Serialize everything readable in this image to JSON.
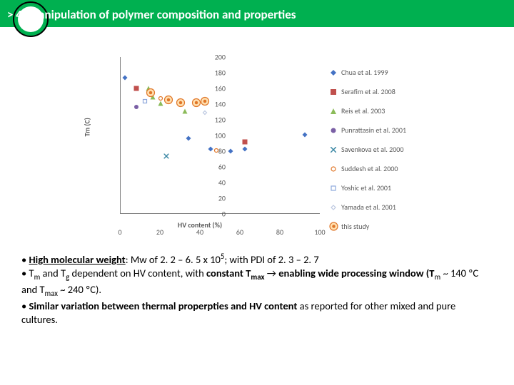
{
  "header": {
    "title": "> 4. Manipulation of polymer composition and properties"
  },
  "chart": {
    "type": "scatter",
    "ylabel": "Tm (C)",
    "xlabel": "HV content (%)",
    "ylim": [
      0,
      200
    ],
    "ytick_step": 20,
    "xlim": [
      0,
      100
    ],
    "xtick_step": 20,
    "axis_color": "#808080",
    "background_color": "#ffffff",
    "label_fontsize": 10,
    "tick_fontsize": 10,
    "legend": [
      {
        "label": "Chua et al. 1999",
        "marker": "diamond-fill",
        "color": "#4472c4"
      },
      {
        "label": "Serafim et al. 2008",
        "marker": "square-fill",
        "color": "#c0504d"
      },
      {
        "label": "Reis et al. 2003",
        "marker": "triangle-fill",
        "color": "#8bbb59"
      },
      {
        "label": "Punrattasin et al. 2001",
        "marker": "circle-fill",
        "color": "#7a5fa5"
      },
      {
        "label": "Savenkova et al. 2000",
        "marker": "x",
        "color": "#3c88a5"
      },
      {
        "label": "Suddesh et al. 2000",
        "marker": "circle-open",
        "color": "#e07628"
      },
      {
        "label": "Yoshic et al. 2001",
        "marker": "square-open",
        "color": "#8da8db"
      },
      {
        "label": "Yamada et al. 2001",
        "marker": "diamond-open",
        "color": "#bcc8e0"
      },
      {
        "label": "this study",
        "marker": "circle-ring",
        "color": "#e07628"
      }
    ],
    "series": [
      {
        "x": 2,
        "y": 175,
        "color": "#4472c4",
        "marker": "diamond-fill"
      },
      {
        "x": 34,
        "y": 97,
        "color": "#4472c4",
        "marker": "diamond-fill"
      },
      {
        "x": 45,
        "y": 84,
        "color": "#4472c4",
        "marker": "diamond-fill"
      },
      {
        "x": 55,
        "y": 81,
        "color": "#4472c4",
        "marker": "diamond-fill"
      },
      {
        "x": 62,
        "y": 84,
        "color": "#4472c4",
        "marker": "diamond-fill"
      },
      {
        "x": 92,
        "y": 102,
        "color": "#4472c4",
        "marker": "diamond-fill"
      },
      {
        "x": 8,
        "y": 161,
        "color": "#c0504d",
        "marker": "square-fill"
      },
      {
        "x": 62,
        "y": 93,
        "color": "#c0504d",
        "marker": "square-fill"
      },
      {
        "x": 14,
        "y": 161,
        "color": "#8bbb59",
        "marker": "triangle-fill"
      },
      {
        "x": 16,
        "y": 150,
        "color": "#8bbb59",
        "marker": "triangle-fill"
      },
      {
        "x": 20,
        "y": 142,
        "color": "#8bbb59",
        "marker": "triangle-fill"
      },
      {
        "x": 32,
        "y": 132,
        "color": "#8bbb59",
        "marker": "triangle-fill"
      },
      {
        "x": 8,
        "y": 137,
        "color": "#7a5fa5",
        "marker": "circle-fill"
      },
      {
        "x": 23,
        "y": 75,
        "color": "#3c88a5",
        "marker": "x"
      },
      {
        "x": 20,
        "y": 148,
        "color": "#e07628",
        "marker": "circle-open"
      },
      {
        "x": 48,
        "y": 82,
        "color": "#e07628",
        "marker": "circle-open"
      },
      {
        "x": 12,
        "y": 145,
        "color": "#8da8db",
        "marker": "square-open"
      },
      {
        "x": 42,
        "y": 130,
        "color": "#bcc8e0",
        "marker": "diamond-open"
      },
      {
        "x": 15,
        "y": 153,
        "color": "#e07628",
        "marker": "circle-ring"
      },
      {
        "x": 24,
        "y": 144,
        "color": "#e07628",
        "marker": "circle-ring"
      },
      {
        "x": 30,
        "y": 140,
        "color": "#e07628",
        "marker": "circle-ring"
      },
      {
        "x": 38,
        "y": 140,
        "color": "#e07628",
        "marker": "circle-ring"
      },
      {
        "x": 42,
        "y": 142,
        "color": "#e07628",
        "marker": "circle-ring"
      }
    ]
  },
  "bullets": {
    "b1_a": "• ",
    "b1_b": "High molecular weight",
    "b1_c": ": Mw of 2. 2 – 6. 5 x 10",
    "b1_d": "5",
    "b1_e": "; with PDI of 2. 3 – 2. 7",
    "b2_a": "• T",
    "b2_m": "m",
    "b2_b": " and T",
    "b2_g": "g",
    "b2_c": " dependent on HV content, with ",
    "b2_d": "constant T",
    "b2_max": "max",
    "b2_e": " ",
    "b2_arrow": "→",
    "b2_f": " enabling wide processing window (T",
    "b2_m2": "m",
    "b2_h": " ~ 140 ºC and T",
    "b2_max2": "max",
    "b2_j": " ~ 240 ºC).",
    "b3_a": "• ",
    "b3_b": "Similar variation between thermal properpties and HV content",
    "b3_c": " as reported for other mixed and pure cultures."
  }
}
